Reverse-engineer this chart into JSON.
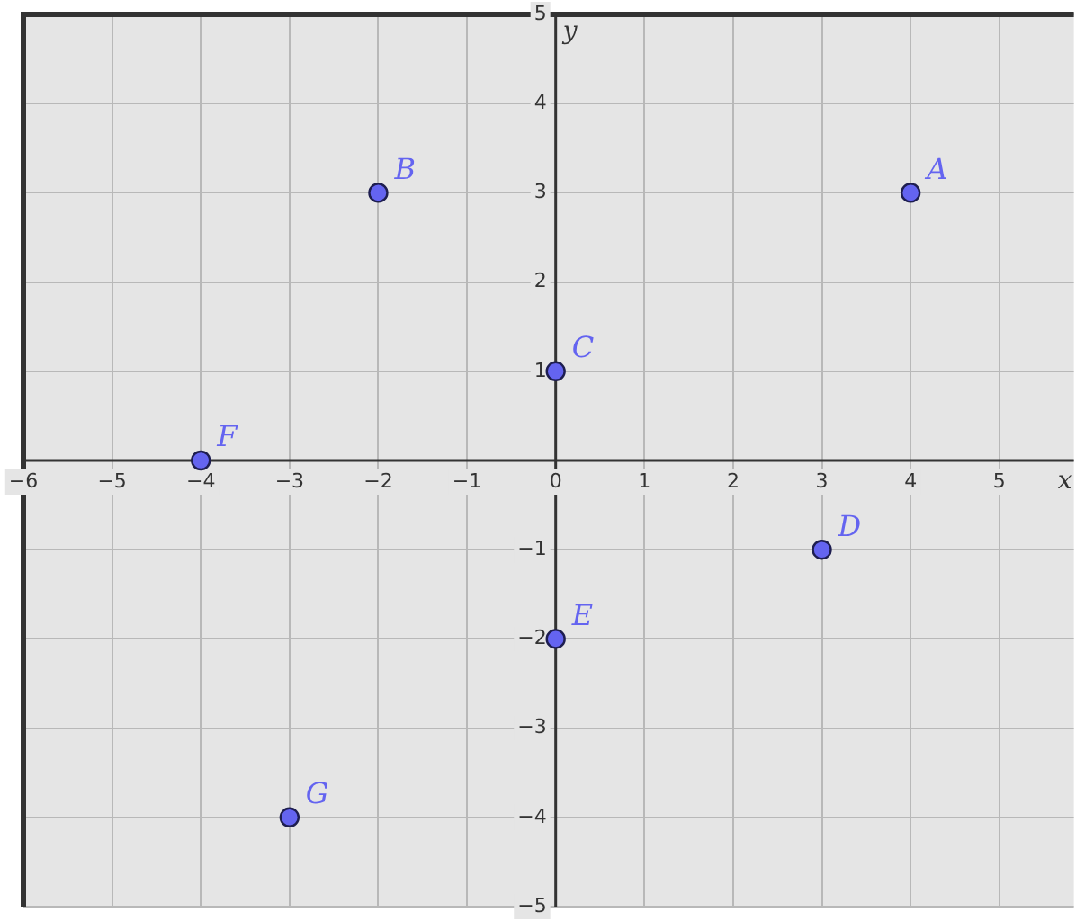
{
  "chart_data": {
    "type": "scatter",
    "xlabel": "x",
    "ylabel": "y",
    "x": [
      4,
      -2,
      0,
      3,
      0,
      -4,
      -3
    ],
    "series": [
      {
        "color": "#6464f0",
        "values": [
          3,
          3,
          1,
          -1,
          -2,
          0,
          -4
        ]
      }
    ],
    "annotations": [
      {
        "text": "A",
        "x": 4,
        "y": 3
      },
      {
        "text": "B",
        "x": -2,
        "y": 3
      },
      {
        "text": "C",
        "x": 0,
        "y": 1
      },
      {
        "text": "D",
        "x": 3,
        "y": -1
      },
      {
        "text": "E",
        "x": 0,
        "y": -2
      },
      {
        "text": "F",
        "x": -4,
        "y": 0
      },
      {
        "text": "G",
        "x": -3,
        "y": -4
      }
    ],
    "xlim": [
      -6,
      5.84
    ],
    "ylim": [
      -5,
      5
    ],
    "xticks": [
      -6,
      -5,
      -4,
      -3,
      -2,
      -1,
      0,
      1,
      2,
      3,
      4,
      5
    ],
    "yticks": [
      -5,
      -4,
      -3,
      -2,
      -1,
      {
        "value": 0,
        "label": null
      },
      1,
      2,
      3,
      4,
      5
    ],
    "grid": true,
    "marker": "circle",
    "legend": false
  }
}
